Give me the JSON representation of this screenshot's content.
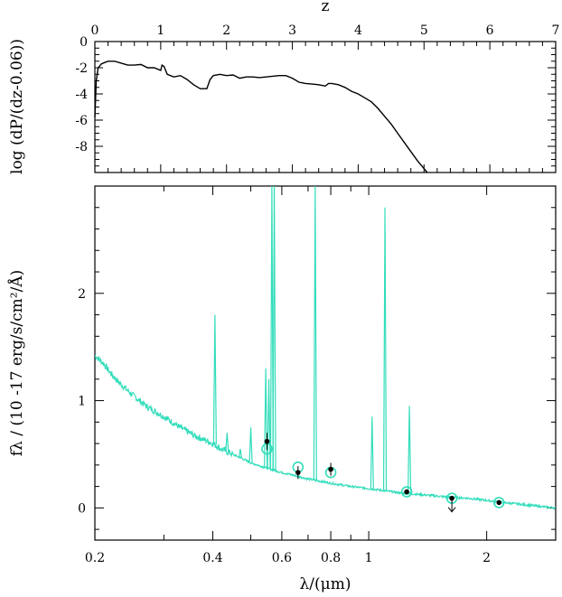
{
  "chart_data": [
    {
      "type": "line",
      "panel": "top",
      "xlabel_top": "z",
      "ylabel": "log (dP/(dz-0.06))",
      "x_ticks": [
        "0",
        "1",
        "2",
        "3",
        "4",
        "5",
        "6",
        "7"
      ],
      "y_ticks": [
        "0",
        "-2",
        "-4",
        "-6",
        "-8"
      ],
      "xlim": [
        0,
        7
      ],
      "ylim": [
        -10,
        0
      ],
      "grid": false,
      "series": [
        {
          "color": "#000000",
          "x": [
            0.0,
            0.02,
            0.05,
            0.1,
            0.15,
            0.2,
            0.3,
            0.4,
            0.5,
            0.6,
            0.7,
            0.8,
            0.85,
            0.9,
            1.0,
            1.02,
            1.05,
            1.1,
            1.2,
            1.3,
            1.4,
            1.5,
            1.6,
            1.7,
            1.75,
            1.8,
            1.9,
            2.0,
            2.1,
            2.2,
            2.3,
            2.4,
            2.5,
            2.6,
            2.7,
            2.8,
            2.9,
            3.0,
            3.1,
            3.2,
            3.3,
            3.4,
            3.5,
            3.55,
            3.6,
            3.7,
            3.8,
            3.9,
            4.0,
            4.1,
            4.2,
            4.3,
            4.4,
            4.5,
            4.6,
            4.7,
            4.8,
            4.9,
            5.0,
            5.05
          ],
          "y": [
            -5.8,
            -3.0,
            -2.0,
            -1.7,
            -1.6,
            -1.5,
            -1.5,
            -1.65,
            -1.8,
            -1.8,
            -1.75,
            -2.0,
            -2.0,
            -2.0,
            -2.2,
            -1.8,
            -1.9,
            -2.5,
            -2.7,
            -2.6,
            -2.9,
            -3.3,
            -3.6,
            -3.6,
            -2.9,
            -2.6,
            -2.5,
            -2.6,
            -2.55,
            -2.8,
            -2.7,
            -2.7,
            -2.75,
            -2.7,
            -2.65,
            -2.6,
            -2.6,
            -2.8,
            -3.1,
            -3.2,
            -3.25,
            -3.3,
            -3.4,
            -3.2,
            -3.2,
            -3.3,
            -3.5,
            -3.8,
            -4.0,
            -4.3,
            -4.6,
            -5.1,
            -5.7,
            -6.3,
            -7.0,
            -7.7,
            -8.4,
            -9.1,
            -9.7,
            -10.0
          ]
        }
      ]
    },
    {
      "type": "line",
      "panel": "bottom",
      "xlabel": "λ/(μm)",
      "ylabel": "fλ / (10 -17 erg/s/cm²/Å)",
      "x_scale": "log",
      "x_ticks": [
        "0.2",
        "0.4",
        "0.6",
        "0.8",
        "1",
        "2"
      ],
      "y_ticks": [
        "0",
        "1",
        "2"
      ],
      "xlim": [
        0.2,
        3.0
      ],
      "ylim": [
        -0.3,
        3.0
      ],
      "grid": false,
      "series": [
        {
          "color": "#33ddbb",
          "x": [
            0.2,
            0.21,
            0.22,
            0.23,
            0.25,
            0.27,
            0.3,
            0.33,
            0.36,
            0.4,
            0.42,
            0.45,
            0.5,
            0.55,
            0.6,
            0.65,
            0.7,
            0.8,
            0.9,
            1.0,
            1.1,
            1.2,
            1.4,
            1.6,
            1.8,
            2.0,
            2.2,
            2.5,
            2.8,
            3.0
          ],
          "y": [
            1.42,
            1.35,
            1.25,
            1.17,
            1.05,
            0.95,
            0.85,
            0.75,
            0.67,
            0.6,
            0.55,
            0.5,
            0.42,
            0.37,
            0.33,
            0.3,
            0.27,
            0.23,
            0.2,
            0.18,
            0.16,
            0.14,
            0.12,
            0.1,
            0.09,
            0.07,
            0.05,
            0.03,
            0.01,
            0.0
          ]
        }
      ],
      "emission_lines": [
        {
          "x": 0.405,
          "y": 1.8
        },
        {
          "x": 0.435,
          "y": 0.7
        },
        {
          "x": 0.47,
          "y": 0.55
        },
        {
          "x": 0.5,
          "y": 0.75
        },
        {
          "x": 0.546,
          "y": 1.3
        },
        {
          "x": 0.556,
          "y": 1.2
        },
        {
          "x": 0.566,
          "y": 3.0
        },
        {
          "x": 0.574,
          "y": 3.0
        },
        {
          "x": 0.73,
          "y": 3.0
        },
        {
          "x": 1.02,
          "y": 0.85
        },
        {
          "x": 1.1,
          "y": 2.8
        },
        {
          "x": 1.27,
          "y": 0.95
        }
      ],
      "photometry": [
        {
          "x": 0.55,
          "y": 0.62,
          "err": 0.08,
          "model": 0.55,
          "upper_limit": false
        },
        {
          "x": 0.66,
          "y": 0.33,
          "err": 0.06,
          "model": 0.38,
          "upper_limit": false
        },
        {
          "x": 0.8,
          "y": 0.36,
          "err": 0.06,
          "model": 0.33,
          "upper_limit": false
        },
        {
          "x": 1.25,
          "y": 0.15,
          "err": 0.02,
          "model": 0.15,
          "upper_limit": false
        },
        {
          "x": 1.63,
          "y": 0.09,
          "err": 0.0,
          "model": 0.09,
          "upper_limit": true
        },
        {
          "x": 2.15,
          "y": 0.05,
          "err": 0.01,
          "model": 0.05,
          "upper_limit": false
        }
      ]
    }
  ]
}
